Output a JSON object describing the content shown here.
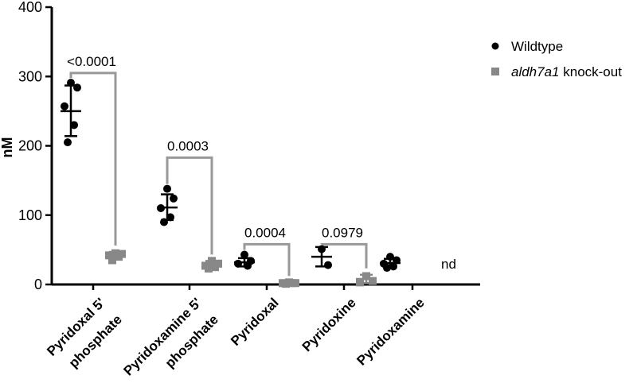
{
  "chart_data": {
    "type": "scatter",
    "ylabel": "nM",
    "xlabel": "",
    "ylim": [
      0,
      400
    ],
    "yticks": [
      0,
      100,
      200,
      300,
      400
    ],
    "grid": false,
    "legend_position": "right",
    "categories": [
      "Pyridoxal 5' phosphate",
      "Pyridoxamine 5' phosphate",
      "Pyridoxal",
      "Pyridoxine",
      "Pyridoxamine"
    ],
    "category_lines": [
      [
        "Pyridoxal 5'",
        "phosphate"
      ],
      [
        "Pyridoxamine 5'",
        "phosphate"
      ],
      [
        "Pyridoxal"
      ],
      [
        "Pyridoxine"
      ],
      [
        "Pyridoxamine"
      ]
    ],
    "series": [
      {
        "name": "Wildtype",
        "name_parts": [
          {
            "text": "Wildtype",
            "italic": false
          }
        ],
        "marker": "circle",
        "color": "#000000",
        "groups": [
          {
            "points": [
              291,
              284,
              257,
              230,
              205
            ],
            "mean": 250,
            "sd_low": 214,
            "sd_high": 287
          },
          {
            "points": [
              138,
              124,
              110,
              97,
              90
            ],
            "mean": 111,
            "sd_low": 93,
            "sd_high": 130
          },
          {
            "points": [
              43,
              34,
              30,
              27
            ],
            "mean": 32,
            "sd_low": 26,
            "sd_high": 38
          },
          {
            "points": [
              51,
              28
            ],
            "mean": 40,
            "sd_low": 26,
            "sd_high": 54
          },
          {
            "points": [
              40,
              35,
              30,
              26,
              24
            ],
            "mean": 31,
            "sd_low": 25,
            "sd_high": 37
          }
        ]
      },
      {
        "name": "aldh7a1 knock-out",
        "name_parts": [
          {
            "text": "aldh7a1",
            "italic": true
          },
          {
            "text": " knock-out",
            "italic": false
          }
        ],
        "marker": "square",
        "color": "#888888",
        "groups": [
          {
            "points": [
              45,
              44,
              42,
              40,
              35
            ],
            "mean": 42,
            "sd_low": 37,
            "sd_high": 47
          },
          {
            "points": [
              34,
              30,
              27,
              25,
              23
            ],
            "mean": 28,
            "sd_low": 22,
            "sd_high": 34
          },
          {
            "points": [
              3,
              2,
              2,
              2,
              1
            ],
            "mean": 2,
            "sd_low": 1,
            "sd_high": 3
          },
          {
            "points": [
              12,
              5,
              3
            ],
            "mean": 8,
            "sd_low": 2,
            "sd_high": 14
          },
          null
        ]
      }
    ],
    "annotations": [
      {
        "category": 0,
        "text": "<0.0001",
        "bracket_y": 305
      },
      {
        "category": 1,
        "text": "0.0003",
        "bracket_y": 183
      },
      {
        "category": 2,
        "text": "0.0004",
        "bracket_y": 58
      },
      {
        "category": 3,
        "text": "0.0979",
        "bracket_y": 58
      }
    ],
    "nd_label": {
      "category": 4,
      "text": "nd"
    }
  }
}
